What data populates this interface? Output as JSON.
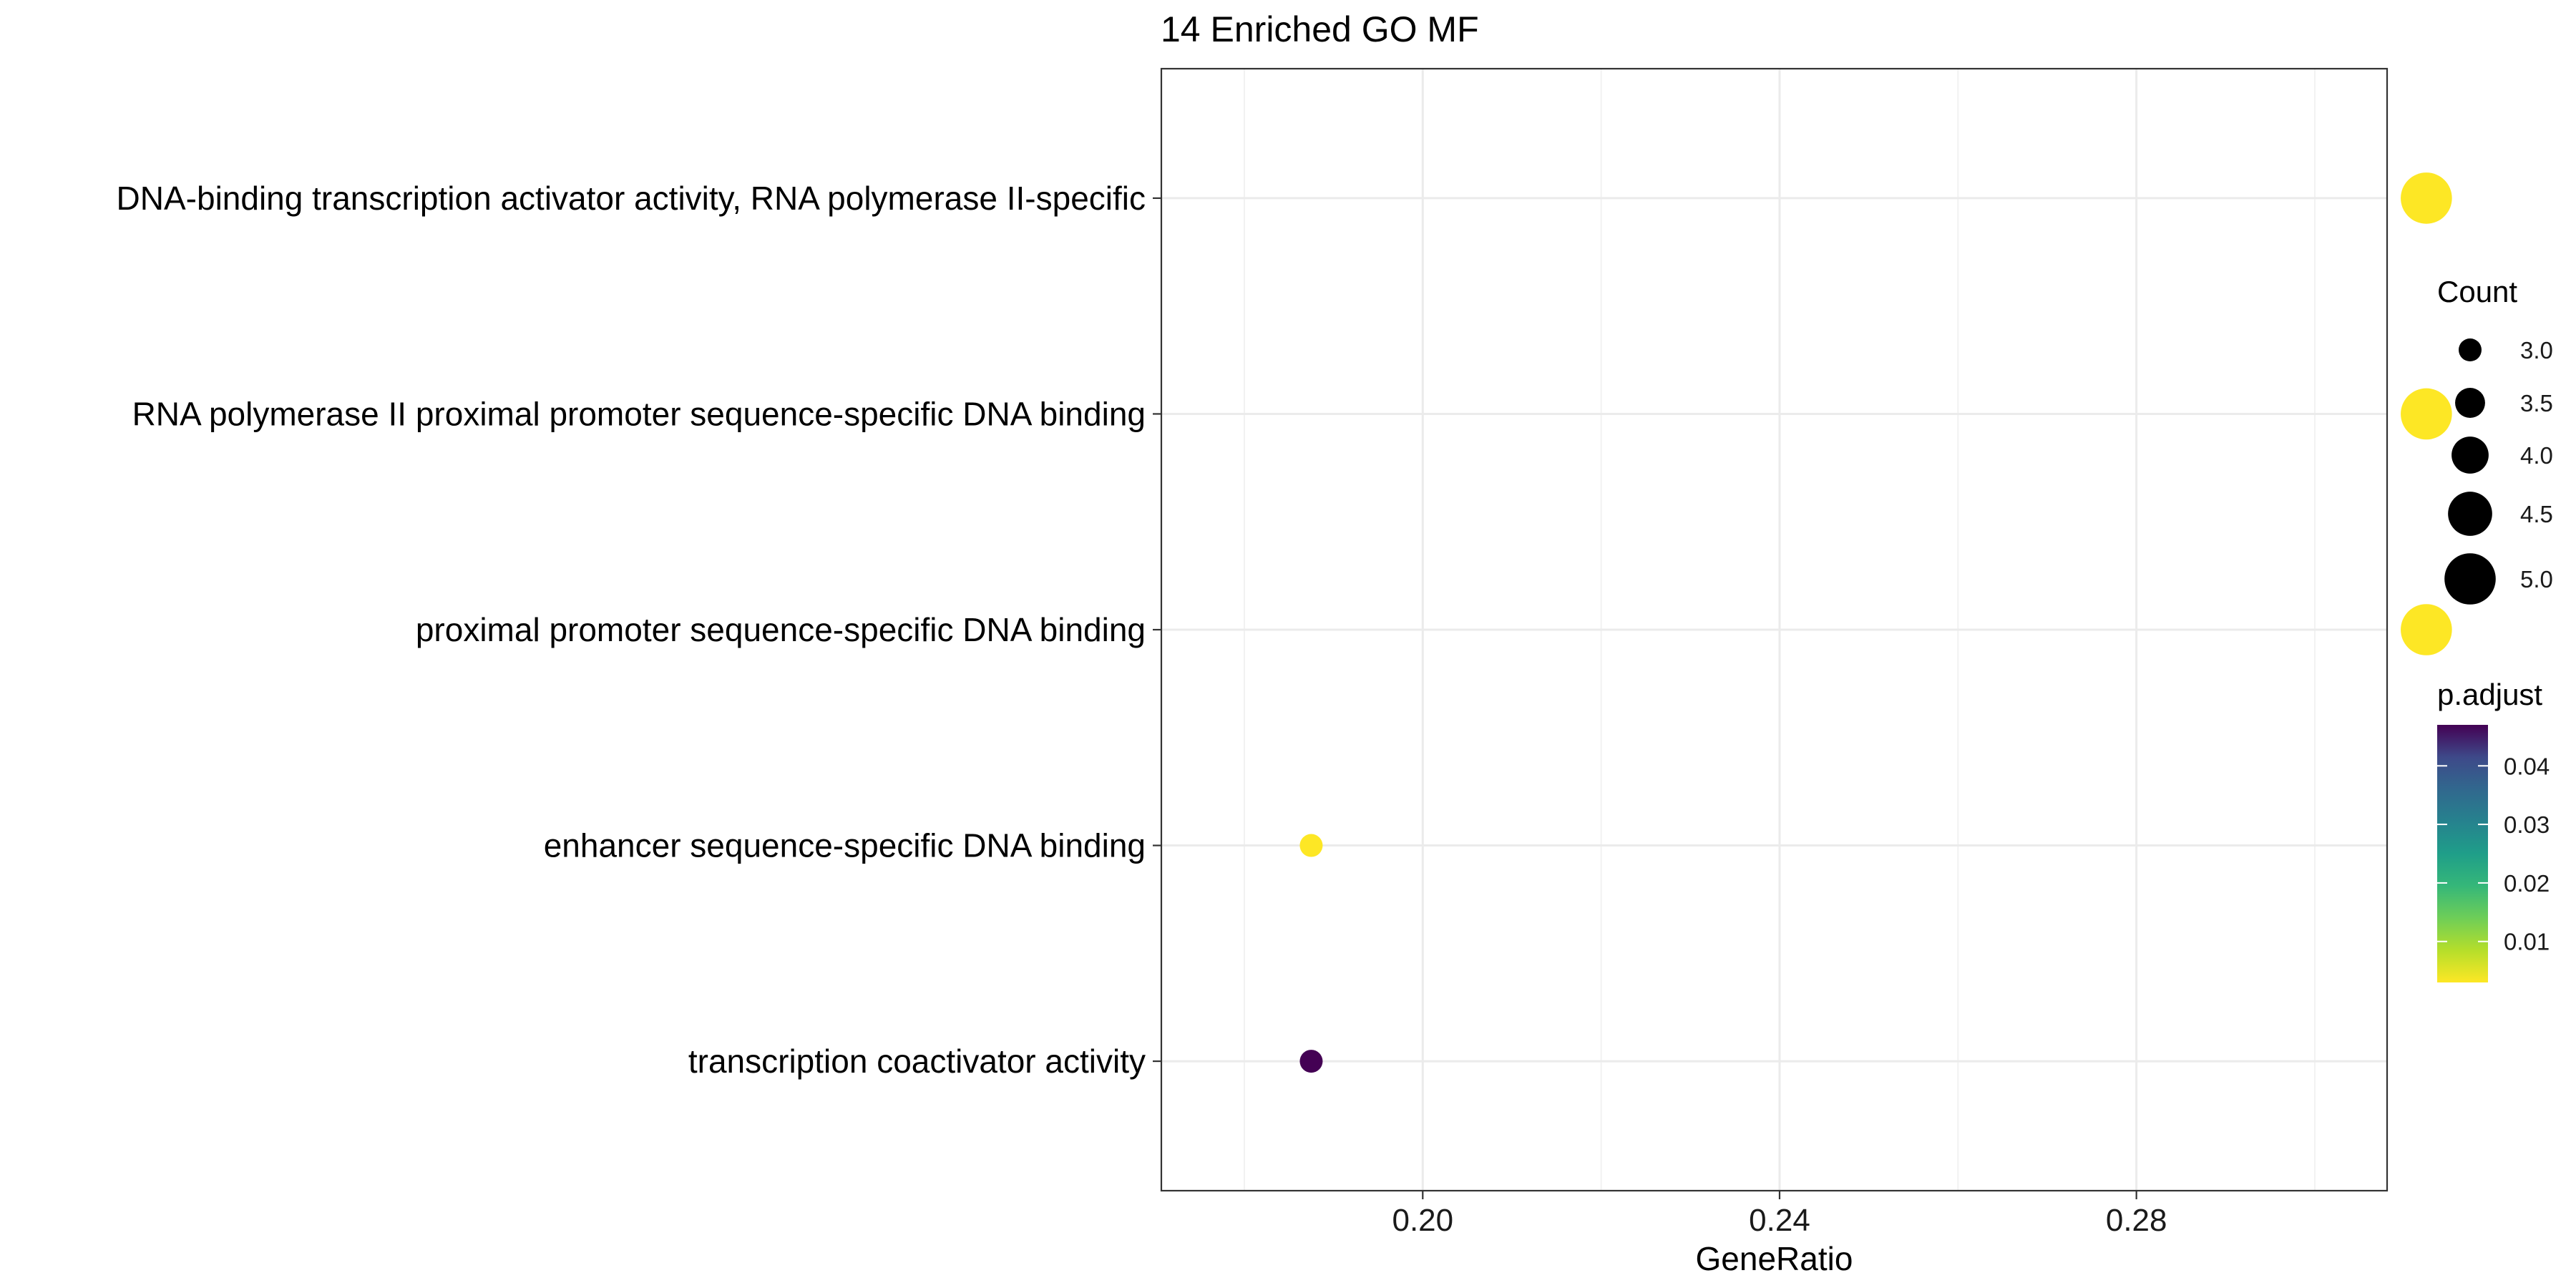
{
  "chart_data": {
    "type": "scatter",
    "title": "14 Enriched GO MF",
    "xlabel": "GeneRatio",
    "ylabel": "",
    "xlim": [
      0.1707,
      0.3081
    ],
    "xticks": [
      0.2,
      0.24,
      0.28
    ],
    "xtick_labels": [
      "0.20",
      "0.24",
      "0.28"
    ],
    "grid": true,
    "categories": [
      "DNA-binding transcription activator activity, RNA polymerase II-specific",
      "RNA polymerase II proximal promoter sequence-specific DNA binding",
      "proximal promoter sequence-specific DNA binding",
      "enhancer sequence-specific DNA binding",
      "transcription coactivator activity"
    ],
    "points": [
      {
        "category": "DNA-binding transcription activator activity, RNA polymerase II-specific",
        "gene_ratio": 0.3125,
        "count": 5,
        "p_adjust": 0.003
      },
      {
        "category": "RNA polymerase II proximal promoter sequence-specific DNA binding",
        "gene_ratio": 0.3125,
        "count": 5,
        "p_adjust": 0.003
      },
      {
        "category": "proximal promoter sequence-specific DNA binding",
        "gene_ratio": 0.3125,
        "count": 5,
        "p_adjust": 0.003
      },
      {
        "category": "enhancer sequence-specific DNA binding",
        "gene_ratio": 0.1875,
        "count": 3,
        "p_adjust": 0.003
      },
      {
        "category": "transcription coactivator activity",
        "gene_ratio": 0.1875,
        "count": 3,
        "p_adjust": 0.047
      }
    ],
    "size_legend": {
      "title": "Count",
      "values": [
        3.0,
        3.5,
        4.0,
        4.5,
        5.0
      ],
      "labels": [
        "3.0",
        "3.5",
        "4.0",
        "4.5",
        "5.0"
      ]
    },
    "color_legend": {
      "title": "p.adjust",
      "range": [
        0.003,
        0.047
      ],
      "ticks": [
        0.01,
        0.02,
        0.03,
        0.04
      ],
      "tick_labels": [
        "0.01",
        "0.02",
        "0.03",
        "0.04"
      ],
      "colormap": "viridis",
      "low_color": "#FDE725",
      "high_color": "#440154"
    },
    "legend_position": "right"
  }
}
